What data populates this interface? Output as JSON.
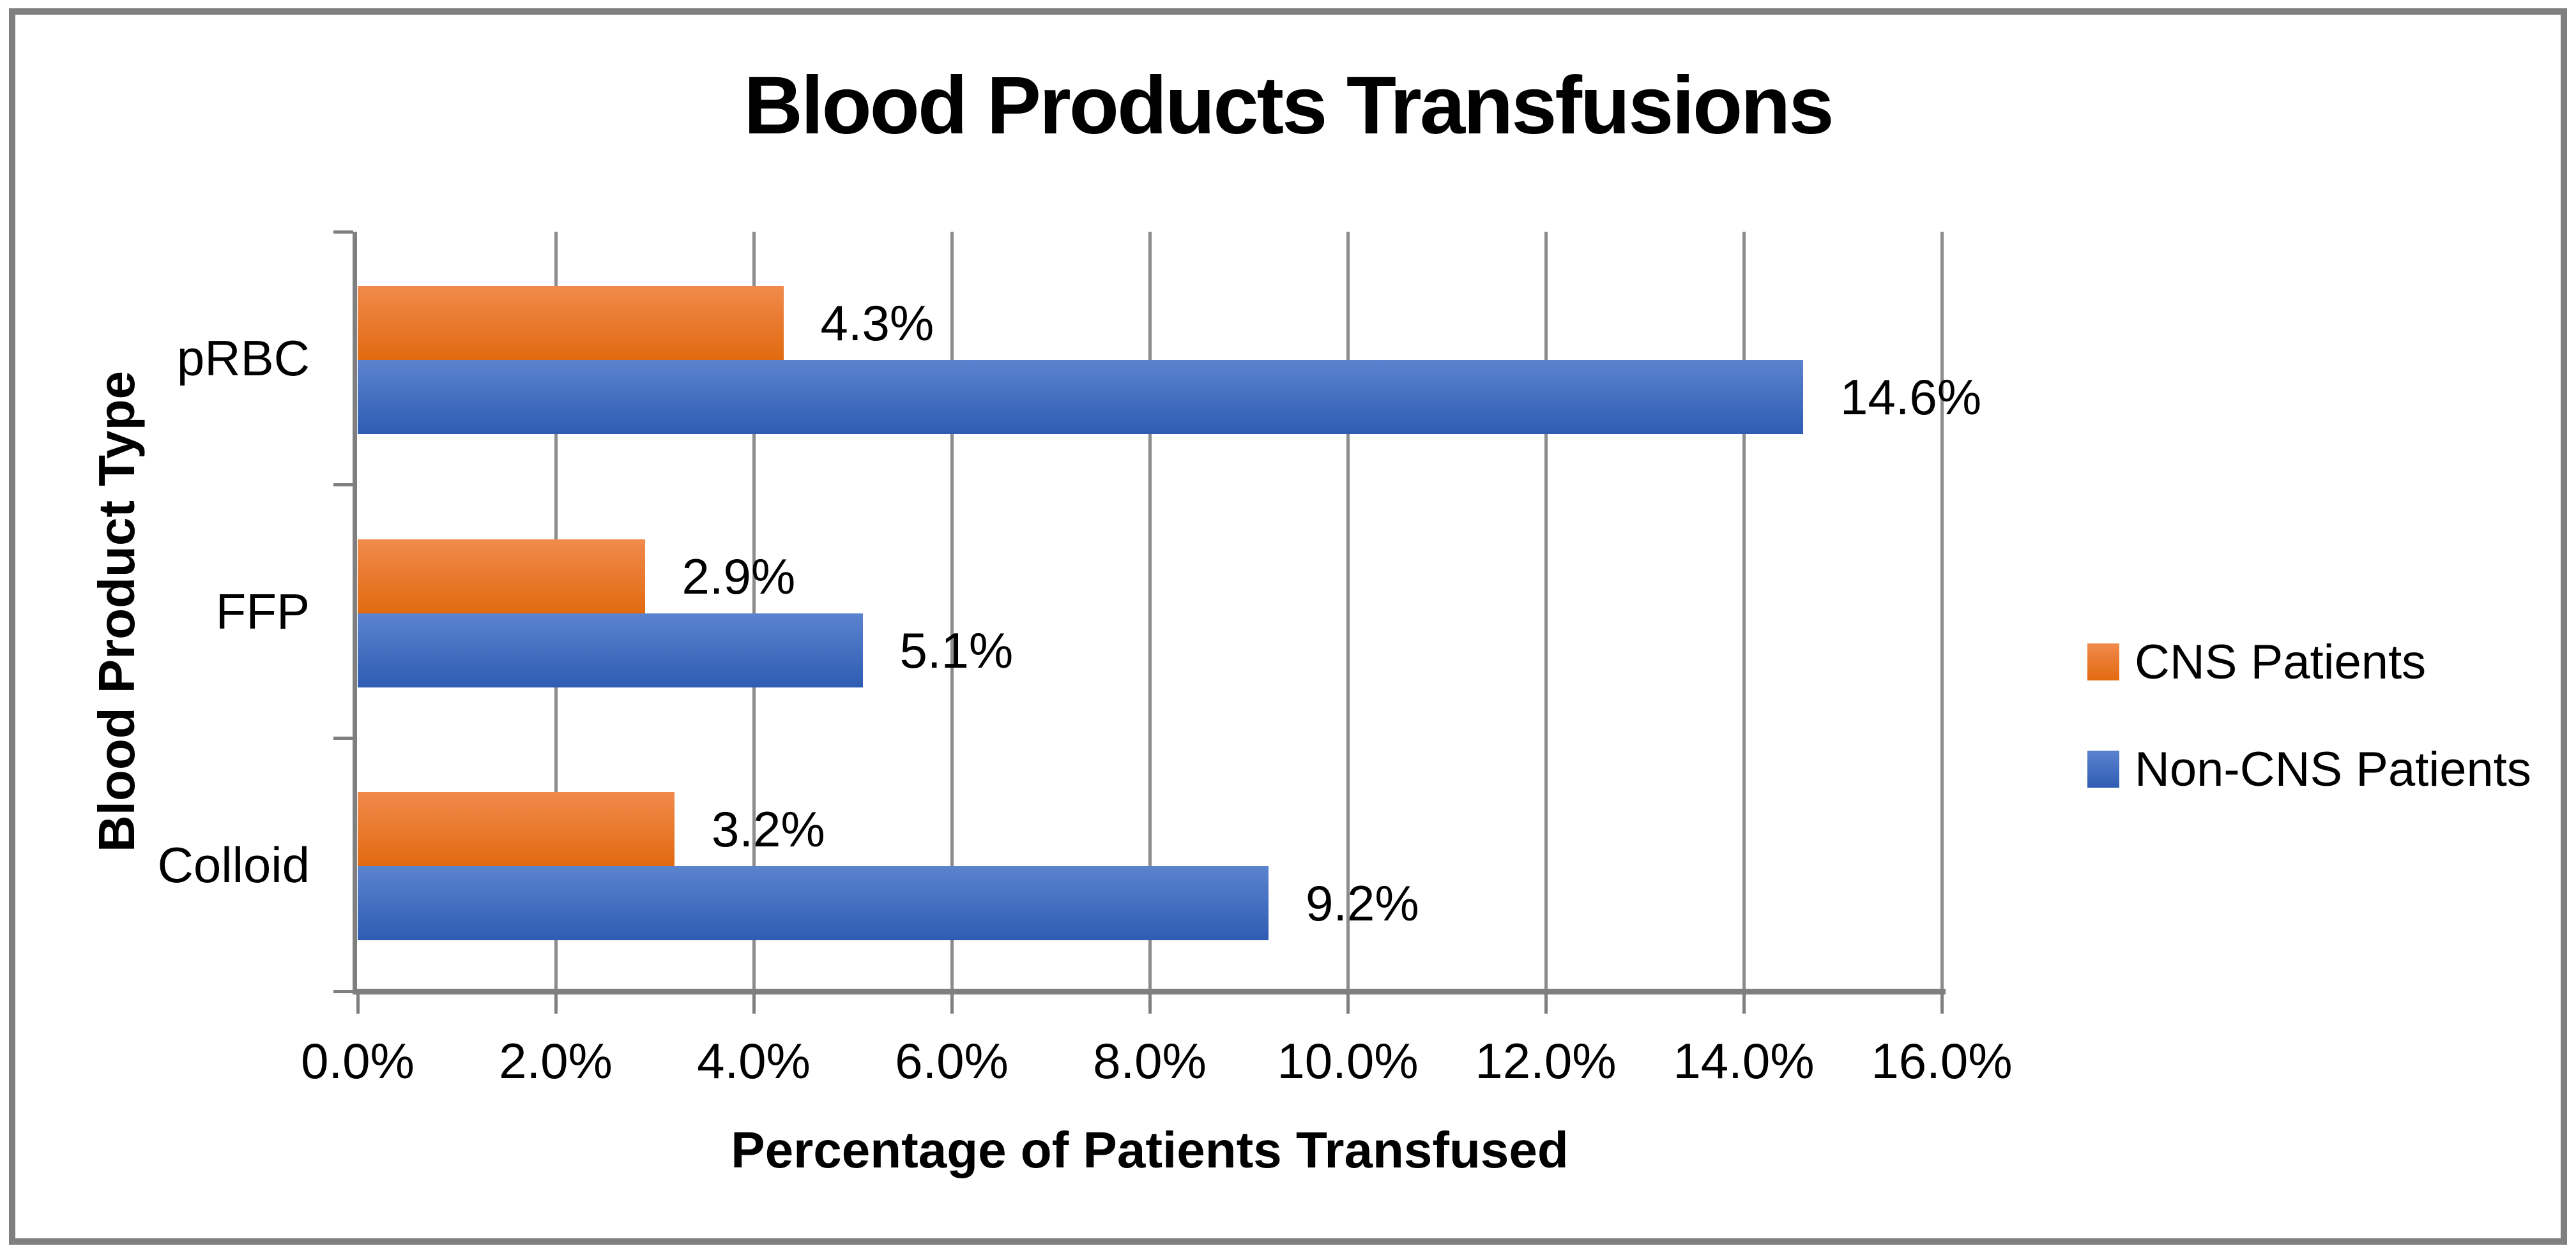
{
  "title": "Blood Products Transfusions",
  "frame": {
    "border_color": "#7F7F7F",
    "background": "#FFFFFF"
  },
  "axes": {
    "x_title": "Percentage of Patients Transfused",
    "y_title": "Blood Product Type",
    "axis_color": "#7F7F7F",
    "gridline_color": "#8C8C8C"
  },
  "legend": {
    "position": "right",
    "items": [
      {
        "label": "CNS Patients",
        "color": "#ED7D31",
        "color_top": "#F08A4C",
        "color_bottom": "#E26A10"
      },
      {
        "label": "Non-CNS Patients",
        "color": "#4472C4",
        "color_top": "#5B83CE",
        "color_bottom": "#2F5CB3"
      }
    ]
  },
  "chart_data": {
    "type": "bar",
    "orientation": "horizontal",
    "title": "Blood Products Transfusions",
    "xlabel": "Percentage of Patients Transfused",
    "ylabel": "Blood Product Type",
    "categories": [
      "pRBC",
      "FFP",
      "Colloid"
    ],
    "series": [
      {
        "name": "CNS Patients",
        "values": [
          4.3,
          2.9,
          3.2
        ],
        "labels": [
          "4.3%",
          "2.9%",
          "3.2%"
        ],
        "color": "#ED7D31",
        "color_top": "#F08A4C",
        "color_bottom": "#E26A10"
      },
      {
        "name": "Non-CNS Patients",
        "values": [
          14.6,
          5.1,
          9.2
        ],
        "labels": [
          "14.6%",
          "5.1%",
          "9.2%"
        ],
        "color": "#4472C4",
        "color_top": "#5B83CE",
        "color_bottom": "#2F5CB3"
      }
    ],
    "xlim": [
      0,
      16
    ],
    "x_tick_values": [
      0,
      2,
      4,
      6,
      8,
      10,
      12,
      14,
      16
    ],
    "x_tick_labels": [
      "0.0%",
      "2.0%",
      "4.0%",
      "6.0%",
      "8.0%",
      "10.0%",
      "12.0%",
      "14.0%",
      "16.0%"
    ],
    "grid": "vertical-major",
    "data_labels": "outside-end",
    "legend_position": "right"
  }
}
